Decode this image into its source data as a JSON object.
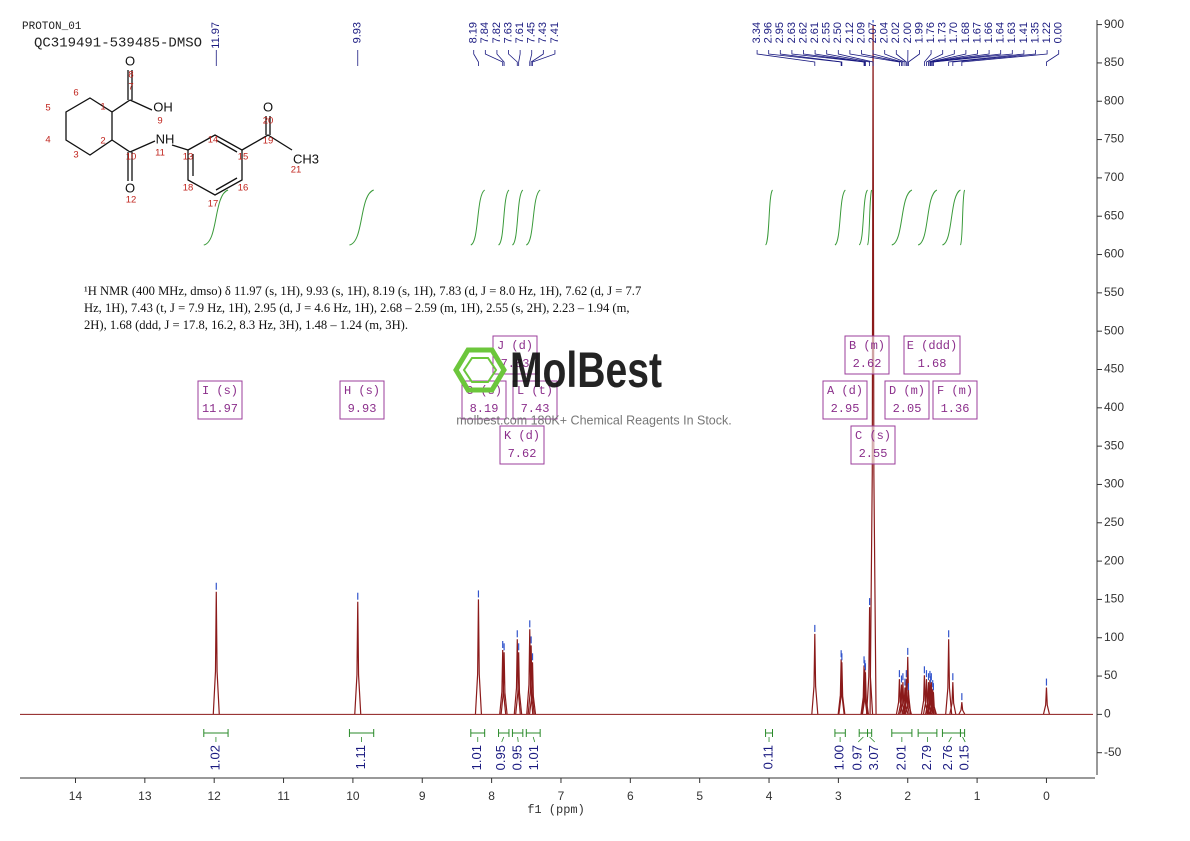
{
  "header": {
    "experiment": "PROTON_01",
    "sample": "QC319491-539485-DMSO"
  },
  "description": "¹H NMR (400 MHz, dmso) δ 11.97 (s, 1H), 9.93 (s, 1H), 8.19 (s, 1H), 7.83 (d, J = 8.0 Hz, 1H), 7.62 (d, J = 7.7 Hz, 1H), 7.43 (t, J = 7.9 Hz, 1H), 2.95 (d, J = 4.6 Hz, 1H), 2.68 – 2.59 (m, 1H), 2.55 (s, 2H), 2.23 – 1.94 (m, 2H), 1.68 (ddd, J = 17.8, 16.2, 8.3 Hz, 3H), 1.48 – 1.24 (m, 3H).",
  "structure": {
    "atoms": [
      "O",
      "OH",
      "NH",
      "O",
      "O",
      "CH3"
    ],
    "numbers": [
      1,
      2,
      3,
      4,
      5,
      6,
      7,
      8,
      9,
      10,
      11,
      12,
      13,
      14,
      15,
      16,
      17,
      18,
      19,
      20,
      21
    ]
  },
  "watermark": {
    "brand": "MolBest",
    "tagline": "molbest.com 180K+ Chemical Reagents In Stock."
  },
  "chart_data": {
    "type": "nmr",
    "xlabel": "f1 (ppm)",
    "x": [
      11.97,
      9.93,
      8.19,
      7.84,
      7.82,
      7.63,
      7.61,
      7.45,
      7.43,
      7.41,
      3.34,
      2.96,
      2.95,
      2.63,
      2.62,
      2.61,
      2.55,
      2.5,
      2.12,
      2.09,
      2.07,
      2.04,
      2.02,
      2.0,
      1.99,
      1.76,
      1.73,
      1.7,
      1.68,
      1.67,
      1.66,
      1.64,
      1.63,
      1.41,
      1.35,
      1.22,
      0.0
    ],
    "values": [
      160,
      147,
      150,
      84,
      81,
      98,
      81,
      111,
      90,
      68,
      105,
      72,
      68,
      64,
      59,
      55,
      140,
      900,
      46,
      39,
      42,
      35,
      46,
      75,
      29,
      51,
      46,
      42,
      45,
      38,
      42,
      33,
      29,
      98,
      42,
      16,
      35
    ],
    "peak_labels": [
      "11.97",
      "9.93",
      "8.19",
      "7.84",
      "7.82",
      "7.63",
      "7.61",
      "7.45",
      "7.43",
      "7.41",
      "3.34",
      "2.96",
      "2.95",
      "2.63",
      "2.62",
      "2.61",
      "2.55",
      "2.50",
      "2.12",
      "2.09",
      "2.07",
      "2.04",
      "2.02",
      "2.00",
      "1.99",
      "1.76",
      "1.73",
      "1.70",
      "1.68",
      "1.67",
      "1.66",
      "1.64",
      "1.63",
      "1.41",
      "1.35",
      "1.22",
      "0.00"
    ],
    "color": "#8b1a1a",
    "xlim": [
      14.8,
      -0.7
    ],
    "xticks": [
      14,
      13,
      12,
      11,
      10,
      9,
      8,
      7,
      6,
      5,
      4,
      3,
      2,
      1,
      0
    ],
    "ylim": [
      -83,
      906
    ],
    "yticks": [
      -50,
      0,
      50,
      100,
      150,
      200,
      250,
      300,
      350,
      400,
      450,
      500,
      550,
      600,
      650,
      700,
      750,
      800,
      850,
      900
    ],
    "integrals": {
      "ranges": [
        [
          12.15,
          11.8
        ],
        [
          10.05,
          9.7
        ],
        [
          8.3,
          8.1
        ],
        [
          7.9,
          7.75
        ],
        [
          7.7,
          7.55
        ],
        [
          7.5,
          7.3
        ],
        [
          4.05,
          3.95
        ],
        [
          3.05,
          2.9
        ],
        [
          2.7,
          2.58
        ],
        [
          2.58,
          2.52
        ],
        [
          2.23,
          1.94
        ],
        [
          1.85,
          1.58
        ],
        [
          1.5,
          1.24
        ],
        [
          1.24,
          1.18
        ]
      ],
      "labels": [
        "1.02",
        "1.11",
        "1.01",
        "0.95",
        "0.95",
        "1.01",
        "0.11",
        "1.00",
        "0.97",
        "3.07",
        "2.01",
        "2.79",
        "2.76",
        "0.15"
      ]
    },
    "multiplets": [
      {
        "name": "I (s)",
        "shift": "11.97"
      },
      {
        "name": "H (s)",
        "shift": "9.93"
      },
      {
        "name": "G (s)",
        "shift": "8.19"
      },
      {
        "name": "J (d)",
        "shift": "7.83"
      },
      {
        "name": "L (t)",
        "shift": "7.43"
      },
      {
        "name": "K (d)",
        "shift": "7.62"
      },
      {
        "name": "B (m)",
        "shift": "2.62"
      },
      {
        "name": "E (ddd)",
        "shift": "1.68"
      },
      {
        "name": "A (d)",
        "shift": "2.95"
      },
      {
        "name": "D (m)",
        "shift": "2.05"
      },
      {
        "name": "F (m)",
        "shift": "1.36"
      },
      {
        "name": "C (s)",
        "shift": "2.55"
      }
    ]
  }
}
